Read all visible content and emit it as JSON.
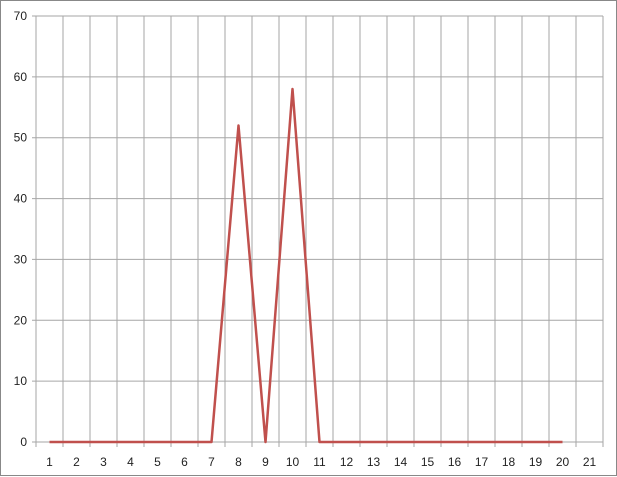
{
  "chart_data": {
    "type": "line",
    "title": "",
    "xlabel": "",
    "ylabel": "",
    "categories": [
      "1",
      "2",
      "3",
      "4",
      "5",
      "6",
      "7",
      "8",
      "9",
      "10",
      "11",
      "12",
      "13",
      "14",
      "15",
      "16",
      "17",
      "18",
      "19",
      "20",
      "21"
    ],
    "series": [
      {
        "values": [
          0,
          0,
          0,
          0,
          0,
          0,
          0,
          52,
          0,
          58,
          0,
          0,
          0,
          0,
          0,
          0,
          0,
          0,
          0,
          0,
          null
        ],
        "color": "#c0504d"
      }
    ],
    "ylim": [
      0,
      70
    ],
    "yticks": [
      0,
      10,
      20,
      30,
      40,
      50,
      60,
      70
    ],
    "grid": true,
    "legend": "none"
  }
}
